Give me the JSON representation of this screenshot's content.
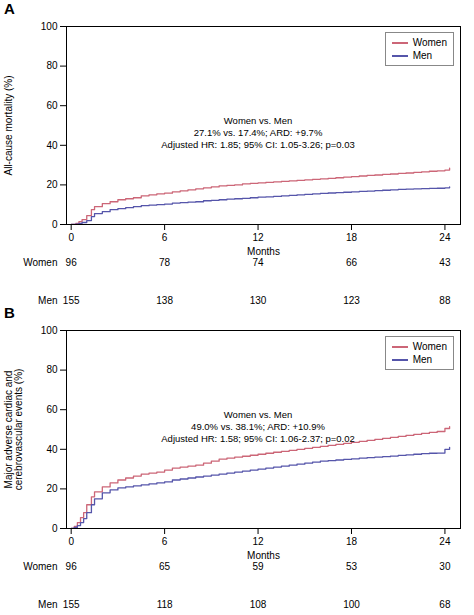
{
  "chart_data": [
    {
      "type": "step",
      "title": "A",
      "ylabel": "All-cause mortality (%)",
      "xlabel": "Months",
      "xlim": [
        -0.3,
        25
      ],
      "xticks": [
        0,
        6,
        12,
        18,
        24
      ],
      "ylim": [
        0,
        100
      ],
      "yticks": [
        0,
        20,
        40,
        60,
        80,
        100
      ],
      "grid": false,
      "legend": "upper right",
      "annotations": [
        {
          "text": "Women vs. Men\n27.1% vs. 17.4%; ARD: +9.7%\nAdjusted HR: 1.85; 95% CI: 1.05-3.26; p=0.03",
          "x": 12,
          "y": 55
        }
      ],
      "series": [
        {
          "name": "Women",
          "color": "#cc6677",
          "x": [
            0,
            0.3,
            0.5,
            0.7,
            1.0,
            1.3,
            1.5,
            2.0,
            2.5,
            3.0,
            3.5,
            4.0,
            4.5,
            5.0,
            5.5,
            6.0,
            6.5,
            7.0,
            7.5,
            8.0,
            8.5,
            9.0,
            9.5,
            10.0,
            10.5,
            11.0,
            11.5,
            12.0,
            12.5,
            13.0,
            13.5,
            14.0,
            14.5,
            15.0,
            15.5,
            16.0,
            16.5,
            17.0,
            17.5,
            18.0,
            18.5,
            19.0,
            19.5,
            20.0,
            20.5,
            21.0,
            21.5,
            22.0,
            22.5,
            23.0,
            23.5,
            24.0,
            24.3
          ],
          "values": [
            0,
            0.5,
            1.5,
            2.5,
            4.5,
            7.5,
            9.0,
            10.5,
            11.5,
            12.5,
            13.0,
            13.5,
            14.5,
            15.0,
            15.5,
            15.8,
            16.5,
            17.0,
            17.5,
            18.0,
            18.5,
            19.0,
            19.5,
            19.8,
            20.0,
            20.5,
            20.8,
            21.0,
            21.3,
            21.5,
            21.8,
            22.0,
            22.3,
            22.5,
            22.8,
            23.0,
            23.3,
            23.6,
            23.9,
            24.2,
            24.5,
            24.8,
            25.0,
            25.3,
            25.5,
            25.8,
            26.0,
            26.3,
            26.6,
            26.9,
            27.1,
            27.5,
            28.5
          ]
        },
        {
          "name": "Men",
          "color": "#5555aa",
          "x": [
            0,
            0.3,
            0.5,
            0.7,
            1.0,
            1.3,
            1.5,
            2.0,
            2.5,
            3.0,
            3.5,
            4.0,
            4.5,
            5.0,
            5.5,
            6.0,
            6.5,
            7.0,
            7.5,
            8.0,
            8.5,
            9.0,
            9.5,
            10.0,
            10.5,
            11.0,
            11.5,
            12.0,
            12.5,
            13.0,
            13.5,
            14.0,
            14.5,
            15.0,
            15.5,
            16.0,
            16.5,
            17.0,
            17.5,
            18.0,
            18.5,
            19.0,
            19.5,
            20.0,
            20.5,
            21.0,
            21.5,
            22.0,
            22.5,
            23.0,
            23.5,
            24.0,
            24.3
          ],
          "values": [
            0,
            0.2,
            0.5,
            1.0,
            2.0,
            4.0,
            5.5,
            6.5,
            7.5,
            8.0,
            8.5,
            9.0,
            9.5,
            9.8,
            10.0,
            10.3,
            10.8,
            11.0,
            11.3,
            11.5,
            12.0,
            12.2,
            12.5,
            12.8,
            13.0,
            13.2,
            13.5,
            13.8,
            14.0,
            14.2,
            14.5,
            14.7,
            15.0,
            15.2,
            15.5,
            15.7,
            15.9,
            16.1,
            16.3,
            16.5,
            16.7,
            16.9,
            17.1,
            17.3,
            17.5,
            17.7,
            17.9,
            18.0,
            18.1,
            18.2,
            18.3,
            18.5,
            19.0
          ]
        }
      ],
      "risk_table": {
        "x": [
          0,
          6,
          12,
          18,
          24
        ],
        "series": [
          {
            "name": "Women",
            "values": [
              96,
              78,
              74,
              66,
              43
            ]
          },
          {
            "name": "Men",
            "values": [
              155,
              138,
              130,
              123,
              88
            ]
          }
        ]
      }
    },
    {
      "type": "step",
      "title": "B",
      "ylabel": "Major adverse cardiac and\ncerebrovascular events (%)",
      "xlabel": "Months",
      "xlim": [
        -0.3,
        25
      ],
      "xticks": [
        0,
        6,
        12,
        18,
        24
      ],
      "ylim": [
        0,
        100
      ],
      "yticks": [
        0,
        20,
        40,
        60,
        80,
        100
      ],
      "grid": false,
      "legend": "upper right",
      "annotations": [
        {
          "text": "Women vs. Men\n49.0% vs. 38.1%; ARD: +10.9%\nAdjusted HR: 1.58; 95% CI: 1.06-2.37; p=0.02",
          "x": 12,
          "y": 60
        }
      ],
      "series": [
        {
          "name": "Women",
          "color": "#cc6677",
          "x": [
            0,
            0.2,
            0.4,
            0.6,
            0.8,
            1.0,
            1.3,
            1.5,
            2.0,
            2.5,
            3.0,
            3.5,
            4.0,
            4.5,
            5.0,
            5.5,
            6.0,
            6.5,
            7.0,
            7.5,
            8.0,
            8.5,
            9.0,
            9.5,
            10.0,
            10.5,
            11.0,
            11.5,
            12.0,
            12.5,
            13.0,
            13.5,
            14.0,
            14.5,
            15.0,
            15.5,
            16.0,
            16.5,
            17.0,
            17.5,
            18.0,
            18.5,
            19.0,
            19.5,
            20.0,
            20.5,
            21.0,
            21.5,
            22.0,
            22.5,
            23.0,
            23.5,
            24.0,
            24.3
          ],
          "values": [
            0,
            1.0,
            3.0,
            5.5,
            8.0,
            12.0,
            16.0,
            18.5,
            21.0,
            23.0,
            24.5,
            25.5,
            26.5,
            27.5,
            28.0,
            28.5,
            29.5,
            30.5,
            31.0,
            31.5,
            32.0,
            33.0,
            34.0,
            35.0,
            35.5,
            36.0,
            36.5,
            37.0,
            37.5,
            38.0,
            38.5,
            39.0,
            39.5,
            40.0,
            40.5,
            41.0,
            41.5,
            42.0,
            42.5,
            43.0,
            43.5,
            44.0,
            44.5,
            45.0,
            45.5,
            46.0,
            46.5,
            47.0,
            47.5,
            48.0,
            48.5,
            49.0,
            50.5,
            51.5
          ]
        },
        {
          "name": "Men",
          "color": "#5555aa",
          "x": [
            0,
            0.2,
            0.4,
            0.6,
            0.8,
            1.0,
            1.3,
            1.5,
            2.0,
            2.5,
            3.0,
            3.5,
            4.0,
            4.5,
            5.0,
            5.5,
            6.0,
            6.5,
            7.0,
            7.5,
            8.0,
            8.5,
            9.0,
            9.5,
            10.0,
            10.5,
            11.0,
            11.5,
            12.0,
            12.5,
            13.0,
            13.5,
            14.0,
            14.5,
            15.0,
            15.5,
            16.0,
            16.5,
            17.0,
            17.5,
            18.0,
            18.5,
            19.0,
            19.5,
            20.0,
            20.5,
            21.0,
            21.5,
            22.0,
            22.5,
            23.0,
            23.5,
            24.0,
            24.3
          ],
          "values": [
            0,
            0.5,
            1.5,
            3.0,
            5.0,
            8.0,
            12.0,
            15.0,
            18.0,
            19.5,
            20.5,
            21.0,
            21.5,
            22.0,
            22.5,
            23.0,
            23.5,
            24.5,
            25.0,
            25.5,
            26.0,
            26.5,
            27.0,
            27.5,
            28.0,
            28.5,
            29.0,
            29.5,
            30.0,
            30.5,
            31.0,
            31.5,
            32.0,
            32.5,
            33.0,
            33.5,
            34.0,
            34.3,
            34.6,
            34.9,
            35.2,
            35.5,
            35.8,
            36.0,
            36.3,
            36.6,
            36.9,
            37.2,
            37.5,
            37.8,
            38.0,
            38.1,
            40.0,
            41.0
          ]
        }
      ],
      "risk_table": {
        "x": [
          0,
          6,
          12,
          18,
          24
        ],
        "series": [
          {
            "name": "Women",
            "values": [
              96,
              65,
              59,
              53,
              30
            ]
          },
          {
            "name": "Men",
            "values": [
              155,
              118,
              108,
              100,
              68
            ]
          }
        ]
      }
    }
  ]
}
